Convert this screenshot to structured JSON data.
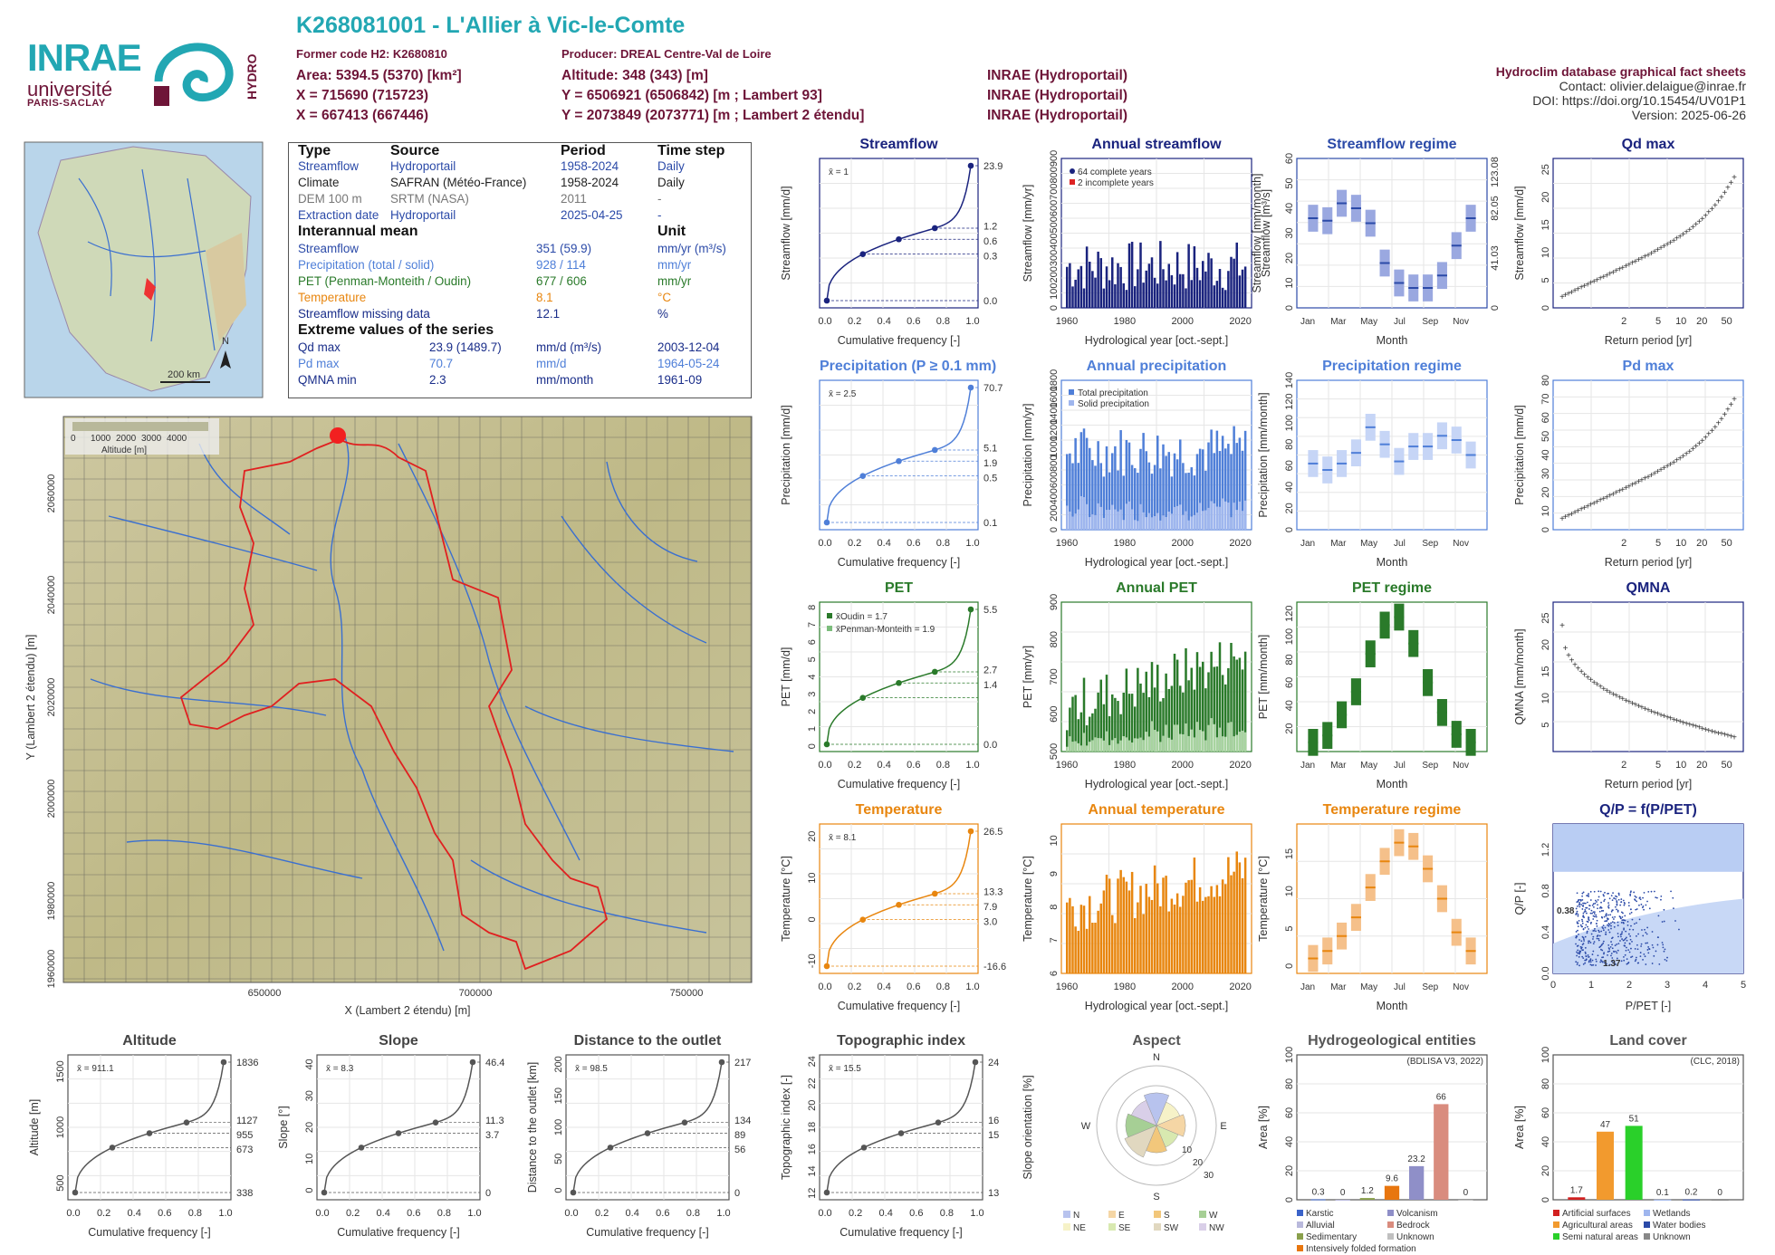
{
  "header": {
    "title": "K268081001 - L'Allier à Vic-le-Comte",
    "former_code": "Former code H2: K2680810",
    "producer": "Producer: DREAL Centre-Val de Loire",
    "area": "Area: 5394.5 (5370) [km²]",
    "altitude": "Altitude: 348 (343) [m]",
    "x": "X = 715690 (715723)",
    "y": "Y = 6506921 (6506842) [m ; Lambert 93]",
    "x2": "X = 667413 (667446)",
    "y2": "Y = 2073849 (2073771) [m ; Lambert 2 étendu]",
    "src1": "INRAE (Hydroportail)",
    "src2": "INRAE (Hydroportail)",
    "src3": "INRAE (Hydroportail)",
    "r1": "Hydroclim database graphical fact sheets",
    "r2": "Contact: olivier.delaigue@inrae.fr",
    "r3": "DOI: https://doi.org/10.15454/UV01P1",
    "r4": "Version: 2025-06-26",
    "logo_inrae": "INRAE",
    "logo_univ": "université",
    "logo_paris": "PARIS-SACLAY",
    "logo_hydro": "HYDRO"
  },
  "infotable": {
    "h_type": "Type",
    "h_source": "Source",
    "h_period": "Period",
    "h_step": "Time step",
    "rows": [
      [
        "Streamflow",
        "Hydroportail",
        "1958-2024",
        "Daily"
      ],
      [
        "Climate",
        "SAFRAN (Météo-France)",
        "1958-2024",
        "Daily"
      ],
      [
        "DEM 100 m",
        "SRTM (NASA)",
        "2011",
        "-"
      ],
      [
        "Extraction date",
        "Hydroportail",
        "2025-04-25",
        "-"
      ]
    ],
    "h_mean": "Interannual mean",
    "h_unit": "Unit",
    "mean": [
      [
        "Streamflow",
        "351 (59.9)",
        "mm/yr (m³/s)"
      ],
      [
        "Precipitation (total / solid)",
        "928 / 114",
        "mm/yr"
      ],
      [
        "PET (Penman-Monteith / Oudin)",
        "677 / 606",
        "mm/yr"
      ],
      [
        "Temperature",
        "8.1",
        "°C"
      ],
      [
        "Streamflow missing data",
        "12.1",
        "%"
      ]
    ],
    "h_ext": "Extreme values of the series",
    "ext": [
      [
        "Qd max",
        "23.9 (1489.7)",
        "mm/d (m³/s)",
        "2003-12-04"
      ],
      [
        "Pd max",
        "70.7",
        "mm/d",
        "1964-05-24"
      ],
      [
        "QMNA min",
        "2.3",
        "mm/month",
        "1961-09"
      ]
    ]
  },
  "map": {
    "scale": "200 km",
    "north": "N",
    "legend_title": "Altitude [m]",
    "legend_ticks": [
      "0",
      "1000",
      "2000",
      "3000",
      "4000"
    ],
    "xlabel": "X (Lambert 2 étendu) [m]",
    "ylabel": "Y (Lambert 2 étendu) [m]",
    "xticks": [
      "650000",
      "700000",
      "750000"
    ],
    "yticks": [
      "2060000",
      "2040000",
      "2020000",
      "2000000",
      "1980000",
      "1960000"
    ]
  },
  "titles": {
    "streamflow": "Streamflow",
    "annual_streamflow": "Annual streamflow",
    "streamflow_regime": "Streamflow regime",
    "qdmax": "Qd max",
    "precip": "Precipitation (P ≥ 0.1 mm)",
    "annual_precip": "Annual precipitation",
    "precip_regime": "Precipitation regime",
    "pdmax": "Pd max",
    "pet": "PET",
    "annual_pet": "Annual PET",
    "pet_regime": "PET regime",
    "qmna": "QMNA",
    "temp": "Temperature",
    "annual_temp": "Annual temperature",
    "temp_regime": "Temperature regime",
    "qp": "Q/P = f(P/PET)",
    "altitude": "Altitude",
    "slope": "Slope",
    "distance": "Distance to the outlet",
    "topo": "Topographic index",
    "aspect": "Aspect",
    "hydrogeo": "Hydrogeological entities",
    "landcover": "Land cover"
  },
  "labels": {
    "cumfreq": "Cumulative frequency [-]",
    "hydroyear": "Hydrological year [oct.-sept.]",
    "month": "Month",
    "return": "Return period [yr]",
    "y_streamflow": "Streamflow [mm/d]",
    "y_streamflow_yr": "Streamflow [mm/yr]",
    "y_streamflow_mo": "Streamflow [mm/month]",
    "y_streamflow_m3": "Streamflow [m³/s]",
    "y_precip": "Precipitation [mm/d]",
    "y_precip_yr": "Precipitation [mm/yr]",
    "y_precip_mo": "Precipitation [mm/month]",
    "y_pet": "PET [mm/d]",
    "y_pet_yr": "PET [mm/yr]",
    "y_pet_mo": "PET [mm/month]",
    "y_qmna": "QMNA [mm/month]",
    "y_temp": "Temperature [°C]",
    "y_qp": "Q/P [-]",
    "x_qp": "P/PET [-]",
    "y_alt": "Altitude [m]",
    "y_slope": "Slope [°]",
    "y_dist": "Distance to the outlet [km]",
    "y_topo": "Topographic index [-]",
    "y_aspect": "Slope orientation [%]",
    "y_area": "Area [%]",
    "legend_complete": "64 complete years",
    "legend_incomplete": "2 incomplete years",
    "legend_total": "Total precipitation",
    "legend_solid": "Solid precipitation",
    "mean_q": "x̄ = 1",
    "mean_p": "x̄ = 2.5",
    "mean_pet_o": "x̄Oudin = 1.7",
    "mean_pet_pm": "x̄Penman-Monteith = 1.9",
    "mean_t": "x̄ = 8.1",
    "mean_alt": "x̄ = 911.1",
    "mean_slope": "x̄ = 8.3",
    "mean_dist": "x̄ = 98.5",
    "mean_topo": "x̄ = 15.5",
    "qp_a": "0.38",
    "qp_b": "1.37",
    "bdlisa": "(BDLISA V3, 2022)",
    "clc": "(CLC, 2018)"
  },
  "colors": {
    "navy": "#1a237e",
    "blue": "#2b4aa8",
    "lblue": "#4f7fd8",
    "green": "#2a7a2a",
    "orange": "#e8860f",
    "teal": "#22a7b3",
    "maroon": "#6e1538"
  },
  "chart_data": [
    {
      "type": "line",
      "title": "Streamflow",
      "xlabel": "Cumulative frequency [-]",
      "ylabel": "Streamflow [mm/d]",
      "x": [
        0,
        0.25,
        0.5,
        0.75,
        1
      ],
      "y": [
        0.05,
        0.3,
        0.6,
        1.2,
        23.9
      ],
      "right_ticks": [
        "23.9",
        "1.2",
        "0.6",
        "0.3",
        "0.0"
      ]
    },
    {
      "type": "bar",
      "title": "Annual streamflow",
      "xlabel": "Hydrological year [oct.-sept.]",
      "ylabel": "Streamflow [mm/yr]",
      "ylim": [
        0,
        900
      ],
      "xticks": [
        "1960",
        "1980",
        "2000",
        "2020"
      ],
      "yticks": [
        "0",
        "100",
        "200",
        "300",
        "400",
        "500",
        "600",
        "700",
        "800",
        "900"
      ],
      "legend": [
        "64 complete years",
        "2 incomplete years"
      ]
    },
    {
      "type": "bar",
      "title": "Streamflow regime",
      "ylabel": "Streamflow [mm/month]",
      "categories": [
        "Jan",
        "Feb",
        "Mar",
        "Apr",
        "May",
        "Jun",
        "Jul",
        "Aug",
        "Sep",
        "Oct",
        "Nov",
        "Dec"
      ],
      "values": [
        36,
        35,
        42,
        40,
        34,
        18,
        10,
        8,
        8,
        13,
        25,
        36
      ],
      "ylim": [
        0,
        60
      ]
    },
    {
      "type": "scatter",
      "title": "Qd max",
      "xlabel": "Return period [yr]",
      "ylabel": "Streamflow [mm/d]",
      "ylim": [
        0,
        27
      ],
      "yticks": [
        "0",
        "5",
        "10",
        "15",
        "20",
        "25"
      ],
      "xticks": [
        "2",
        "5",
        "10",
        "20",
        "50"
      ],
      "max": 23.9
    },
    {
      "type": "line",
      "title": "Precipitation (P ≥ 0.1 mm)",
      "ylabel": "Precipitation [mm/d]",
      "x": [
        0,
        0.25,
        0.5,
        0.75,
        1
      ],
      "y": [
        0.1,
        0.5,
        1.9,
        5.1,
        70.7
      ],
      "right_ticks": [
        "70.7",
        "5.1",
        "1.9",
        "0.5",
        "0.1"
      ]
    },
    {
      "type": "bar",
      "title": "Annual precipitation",
      "ylabel": "Precipitation [mm/yr]",
      "ylim": [
        0,
        1800
      ],
      "xticks": [
        "1960",
        "1980",
        "2000",
        "2020"
      ],
      "legend": [
        "Total precipitation",
        "Solid precipitation"
      ]
    },
    {
      "type": "bar",
      "title": "Precipitation regime",
      "ylabel": "Precipitation [mm/month]",
      "categories": [
        "Jan",
        "Feb",
        "Mar",
        "Apr",
        "May",
        "Jun",
        "Jul",
        "Aug",
        "Sep",
        "Oct",
        "Nov",
        "Dec"
      ],
      "values": [
        62,
        56,
        62,
        72,
        96,
        80,
        64,
        78,
        78,
        88,
        84,
        70
      ],
      "ylim": [
        0,
        140
      ]
    },
    {
      "type": "scatter",
      "title": "Pd max",
      "ylabel": "Precipitation [mm/d]",
      "max": 70.7
    },
    {
      "type": "line",
      "title": "PET",
      "ylabel": "PET [mm/d]",
      "right_ticks": [
        "5.5",
        "2.7",
        "1.4",
        "0.0"
      ],
      "yticks": [
        "0",
        "1",
        "2",
        "3",
        "4",
        "5",
        "6",
        "7",
        "8"
      ]
    },
    {
      "type": "bar",
      "title": "Annual PET",
      "ylabel": "PET [mm/yr]",
      "ylim": [
        500,
        900
      ],
      "yticks": [
        "500",
        "600",
        "700",
        "800",
        "900"
      ]
    },
    {
      "type": "bar",
      "title": "PET regime",
      "ylabel": "PET [mm/month]",
      "categories": [
        "Jan",
        "Feb",
        "Mar",
        "Apr",
        "May",
        "Jun",
        "Jul",
        "Aug",
        "Sep",
        "Oct",
        "Nov",
        "Dec"
      ],
      "values": [
        8,
        14,
        32,
        52,
        85,
        110,
        117,
        94,
        60,
        34,
        15,
        8
      ],
      "yticks": [
        "20",
        "40",
        "60",
        "80",
        "100",
        "120"
      ]
    },
    {
      "type": "scatter",
      "title": "QMNA",
      "ylabel": "QMNA [mm/month]",
      "yticks": [
        "5",
        "10",
        "15",
        "20",
        "25"
      ],
      "min": 2.3
    },
    {
      "type": "line",
      "title": "Temperature",
      "ylabel": "Temperature [°C]",
      "right_ticks": [
        "26.5",
        "13.3",
        "7.9",
        "3.0",
        "-16.6"
      ],
      "yticks": [
        "-10",
        "0",
        "10",
        "20"
      ]
    },
    {
      "type": "bar",
      "title": "Annual temperature",
      "ylabel": "Temperature [°C]",
      "ylim": [
        6,
        10.5
      ],
      "yticks": [
        "6",
        "7",
        "8",
        "9",
        "10"
      ]
    },
    {
      "type": "bar",
      "title": "Temperature regime",
      "ylabel": "Temperature [°C]",
      "categories": [
        "Jan",
        "Feb",
        "Mar",
        "Apr",
        "May",
        "Jun",
        "Jul",
        "Aug",
        "Sep",
        "Oct",
        "Nov",
        "Dec"
      ],
      "values": [
        1,
        2,
        4,
        6.5,
        10.5,
        14,
        16.5,
        16,
        13,
        9,
        4.5,
        2
      ],
      "yticks": [
        "0",
        "5",
        "10",
        "15"
      ]
    },
    {
      "type": "scatter",
      "title": "Q/P = f(P/PET)",
      "xlabel": "P/PET [-]",
      "ylabel": "Q/P [-]",
      "xticks": [
        "0",
        "1",
        "2",
        "3",
        "4",
        "5"
      ],
      "yticks": [
        "0.0",
        "0.4",
        "0.8",
        "1.2"
      ]
    },
    {
      "type": "line",
      "title": "Altitude",
      "ylabel": "Altitude [m]",
      "right_ticks": [
        "1836",
        "1127",
        "955",
        "673",
        "338"
      ],
      "yticks": [
        "500",
        "1000",
        "1500"
      ]
    },
    {
      "type": "line",
      "title": "Slope",
      "ylabel": "Slope [°]",
      "right_ticks": [
        "46.4",
        "11.3",
        "3.7",
        "0"
      ],
      "yticks": [
        "0",
        "10",
        "20",
        "30",
        "40"
      ]
    },
    {
      "type": "line",
      "title": "Distance to the outlet",
      "ylabel": "Distance to the outlet [km]",
      "right_ticks": [
        "217",
        "134",
        "89",
        "56",
        "0"
      ],
      "yticks": [
        "0",
        "50",
        "100",
        "150",
        "200"
      ]
    },
    {
      "type": "line",
      "title": "Topographic index",
      "ylabel": "Topographic index [-]",
      "right_ticks": [
        "24",
        "16",
        "15",
        "13"
      ],
      "yticks": [
        "12",
        "14",
        "16",
        "18",
        "20",
        "22",
        "24"
      ]
    },
    {
      "type": "pie",
      "title": "Aspect",
      "categories": [
        "N",
        "NE",
        "E",
        "SE",
        "S",
        "SW",
        "W",
        "NW"
      ],
      "ring_ticks": [
        "10",
        "20",
        "30"
      ]
    },
    {
      "type": "bar",
      "title": "Hydrogeological entities",
      "ylabel": "Area [%]",
      "categories": [
        "Karstic",
        "Alluvial",
        "Sedimentary",
        "Intensively folded formation",
        "Volcanism",
        "Bedrock",
        "Unknown"
      ],
      "values": [
        0.3,
        0,
        1.2,
        9.6,
        23.2,
        66,
        0
      ],
      "ylim": [
        0,
        100
      ],
      "yticks": [
        "0",
        "20",
        "40",
        "60",
        "80",
        "100"
      ]
    },
    {
      "type": "bar",
      "title": "Land cover",
      "ylabel": "Area [%]",
      "categories": [
        "Artificial surfaces",
        "Agricultural areas",
        "Semi natural areas",
        "Wetlands",
        "Water bodies",
        "Unknown"
      ],
      "values": [
        1.7,
        47,
        51,
        0.1,
        0.2,
        0
      ],
      "ylim": [
        0,
        100
      ],
      "yticks": [
        "0",
        "20",
        "40",
        "60",
        "80",
        "100"
      ]
    }
  ]
}
